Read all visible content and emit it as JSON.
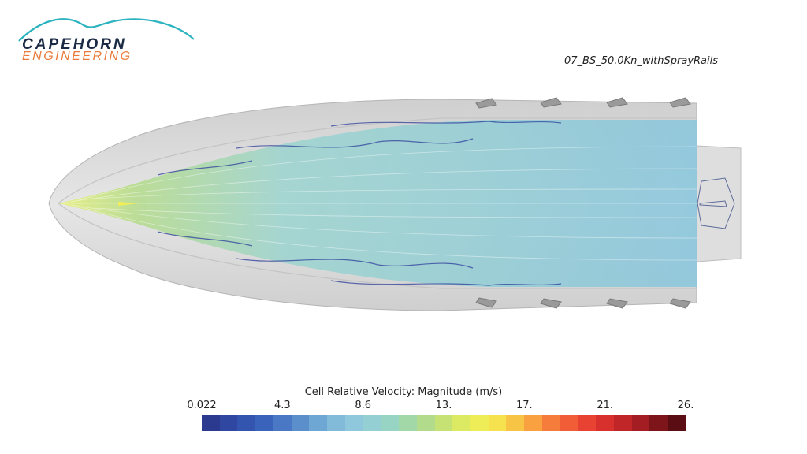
{
  "logo": {
    "line1": "CAPEHORN",
    "line2": "ENGINEERING",
    "colors": {
      "swoosh": "#2bb3c0",
      "line1": "#1a2a44",
      "line2": "#ec7a3a"
    }
  },
  "case_label": "07_BS_50.0Kn_withSprayRails",
  "legend": {
    "title": "Cell Relative Velocity: Magnitude (m/s)",
    "ticks": [
      "0.022",
      "4.3",
      "8.6",
      "13.",
      "17.",
      "21.",
      "26."
    ],
    "colors": [
      "#2b3a8f",
      "#2f47a0",
      "#3355b0",
      "#3a63bb",
      "#4a78c4",
      "#5b8fcc",
      "#6ea6d4",
      "#82bbd9",
      "#8fc8dc",
      "#94cfd3",
      "#98d4c4",
      "#a2d8a8",
      "#b2dc8c",
      "#c6e274",
      "#dce963",
      "#eeed57",
      "#f6e24e",
      "#f8c446",
      "#f9a040",
      "#f67c3b",
      "#f05d36",
      "#e84332",
      "#d8302d",
      "#c02528",
      "#a31d22",
      "#7d151b",
      "#5a0e14"
    ]
  }
}
